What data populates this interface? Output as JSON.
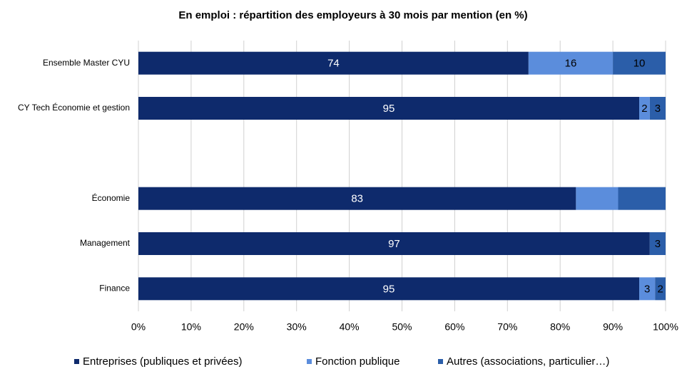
{
  "chart_data": {
    "type": "stacked_bar_horizontal",
    "title": "En emploi : répartition des employeurs à 30 mois par mention (en %)",
    "categories": [
      "Ensemble Master CYU",
      "CY Tech Économie et gestion",
      null,
      "Économie",
      "Management",
      "Finance"
    ],
    "series": [
      {
        "name": "Entreprises (publiques et privées)",
        "color": "#0e2a6c",
        "label_color": "#ffffff",
        "values": [
          74,
          95,
          null,
          83,
          97,
          95
        ],
        "value_labels": [
          "74",
          "95",
          null,
          "83",
          "97",
          "95"
        ]
      },
      {
        "name": "Fonction publique",
        "color": "#5b8ddc",
        "label_color": "#000000",
        "values": [
          16,
          2,
          null,
          8,
          0,
          3
        ],
        "value_labels": [
          "16",
          "2",
          null,
          null,
          null,
          "3"
        ]
      },
      {
        "name": "Autres (associations, particulier…)",
        "color": "#2b5ea9",
        "label_color": "#000000",
        "values": [
          10,
          3,
          null,
          9,
          3,
          2
        ],
        "value_labels": [
          "10",
          "3",
          null,
          null,
          "3",
          "2"
        ]
      }
    ],
    "xlim": [
      0,
      100
    ],
    "xticks": [
      {
        "value": 0,
        "label": "0%"
      },
      {
        "value": 10,
        "label": "10%"
      },
      {
        "value": 20,
        "label": "20%"
      },
      {
        "value": 30,
        "label": "30%"
      },
      {
        "value": 40,
        "label": "40%"
      },
      {
        "value": 50,
        "label": "50%"
      },
      {
        "value": 60,
        "label": "60%"
      },
      {
        "value": 70,
        "label": "70%"
      },
      {
        "value": 80,
        "label": "80%"
      },
      {
        "value": 90,
        "label": "90%"
      },
      {
        "value": 100,
        "label": "100%"
      }
    ],
    "grid": true,
    "legend": "bottom"
  }
}
